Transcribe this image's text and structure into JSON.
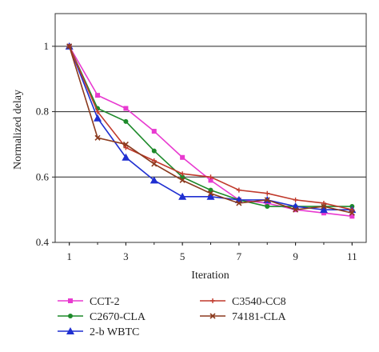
{
  "chart_data": {
    "type": "line",
    "title": "",
    "xlabel": "Iteration",
    "ylabel": "Normalized delay",
    "xlim": [
      0.5,
      11.5
    ],
    "ylim": [
      0.4,
      1.1
    ],
    "xticks": [
      1,
      3,
      5,
      7,
      9,
      11
    ],
    "yticks": [
      0.4,
      0.6,
      0.8,
      1
    ],
    "ytick_labels": [
      "0.4",
      "0.6",
      "0.8",
      "1"
    ],
    "grid": "horizontal",
    "legend_position": "below",
    "x": [
      1,
      2,
      3,
      4,
      5,
      6,
      7,
      8,
      9,
      10,
      11
    ],
    "series": [
      {
        "name": "CCT-2",
        "color": "#e83ad0",
        "marker": "square",
        "values": [
          1.0,
          0.85,
          0.81,
          0.74,
          0.66,
          0.59,
          0.53,
          0.52,
          0.5,
          0.49,
          0.48
        ]
      },
      {
        "name": "C2670-CLA",
        "color": "#1d8a2a",
        "marker": "circle",
        "values": [
          1.0,
          0.81,
          0.77,
          0.68,
          0.6,
          0.56,
          0.53,
          0.51,
          0.51,
          0.51,
          0.51
        ]
      },
      {
        "name": "2-b WBTC",
        "color": "#1f2fd1",
        "marker": "triangle",
        "values": [
          1.0,
          0.78,
          0.66,
          0.59,
          0.54,
          0.54,
          0.53,
          0.53,
          0.51,
          0.5,
          0.5
        ]
      },
      {
        "name": "C3540-CC8",
        "color": "#c0392b",
        "marker": "plus",
        "values": [
          1.0,
          0.8,
          0.69,
          0.65,
          0.61,
          0.6,
          0.56,
          0.55,
          0.53,
          0.52,
          0.5
        ]
      },
      {
        "name": "74181-CLA",
        "color": "#8b3a1e",
        "marker": "x",
        "values": [
          1.0,
          0.72,
          0.7,
          0.64,
          0.59,
          0.55,
          0.52,
          0.53,
          0.5,
          0.51,
          0.49
        ]
      }
    ]
  }
}
